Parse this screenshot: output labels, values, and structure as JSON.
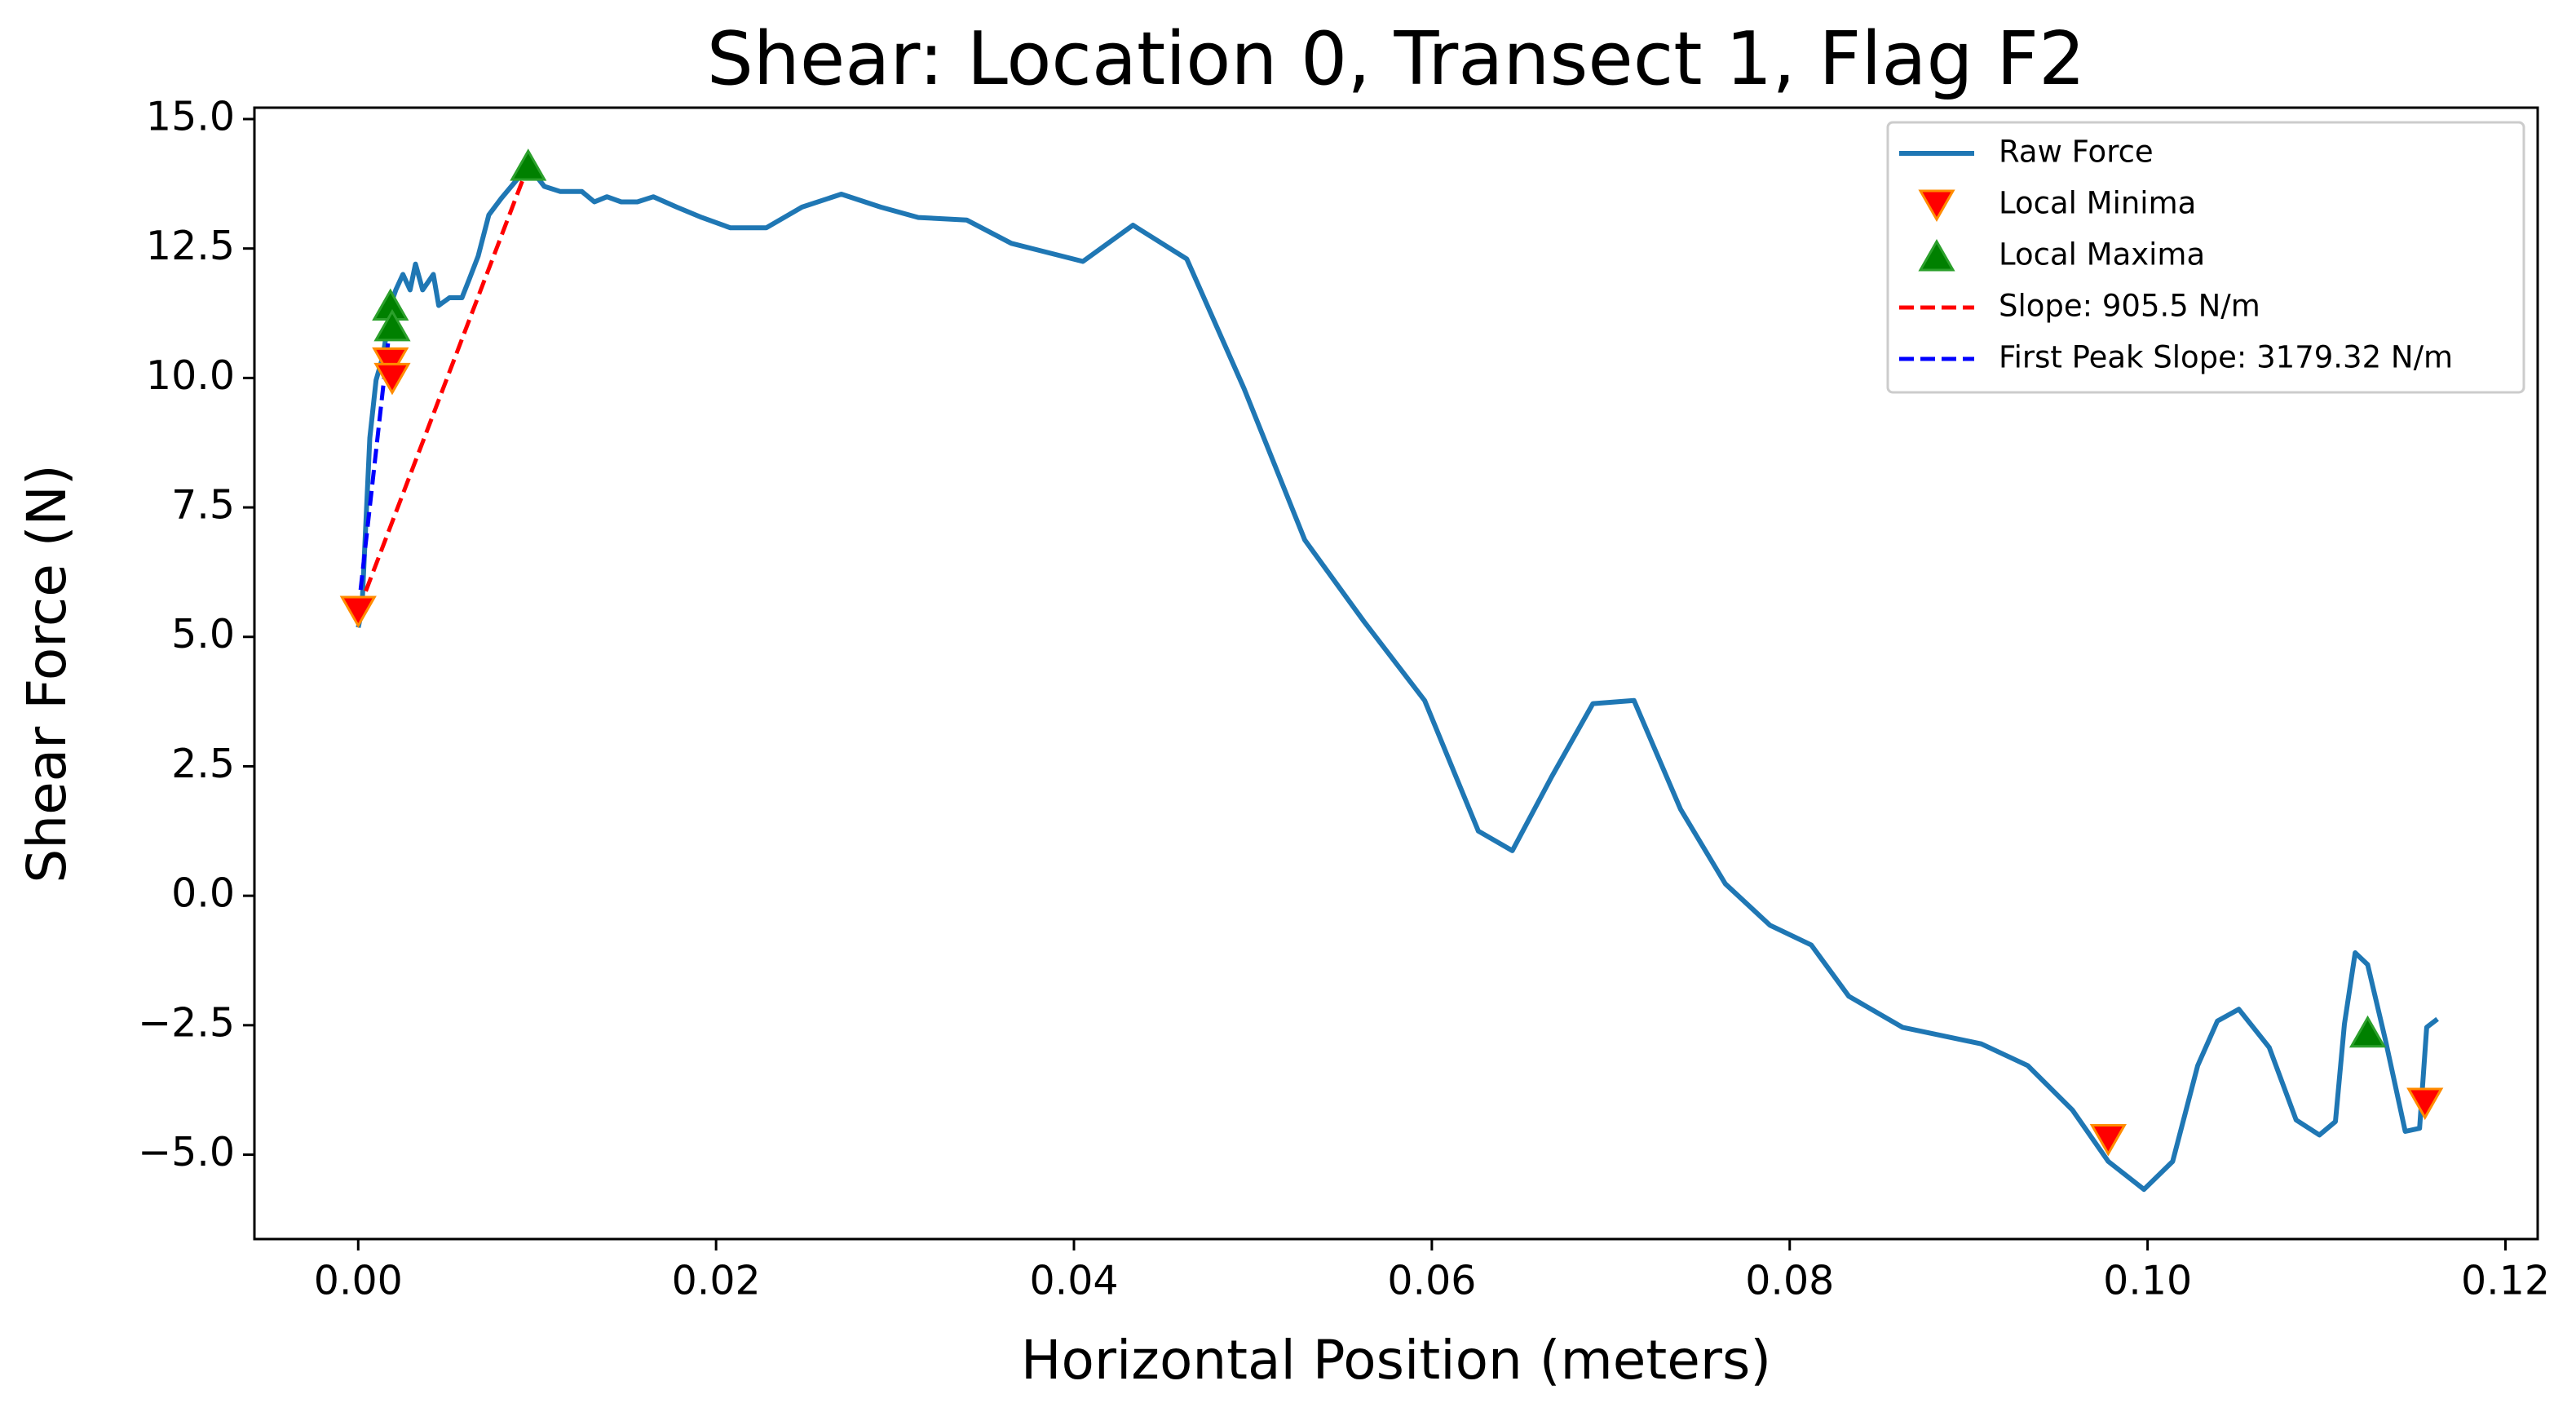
{
  "chart_data": {
    "type": "line",
    "title": "Shear: Location 0, Transect 1, Flag F2",
    "xlabel": "Horizontal Position (meters)",
    "ylabel": "Shear Force (N)",
    "xlim": [
      -0.0058,
      0.1218
    ],
    "ylim": [
      -6.63,
      15.22
    ],
    "xticks": [
      {
        "value": 0,
        "label": "0.00"
      },
      {
        "value": 0.02,
        "label": "0.02"
      },
      {
        "value": 0.04,
        "label": "0.04"
      },
      {
        "value": 0.06,
        "label": "0.06"
      },
      {
        "value": 0.08,
        "label": "0.08"
      },
      {
        "value": 0.1,
        "label": "0.10"
      },
      {
        "value": 0.12,
        "label": "0.12"
      }
    ],
    "yticks": [
      {
        "value": -5,
        "label": "−5.0"
      },
      {
        "value": -2.5,
        "label": "−2.5"
      },
      {
        "value": 0,
        "label": "0.0"
      },
      {
        "value": 2.5,
        "label": "2.5"
      },
      {
        "value": 5,
        "label": "5.0"
      },
      {
        "value": 7.5,
        "label": "7.5"
      },
      {
        "value": 10,
        "label": "10.0"
      },
      {
        "value": 12.5,
        "label": "12.5"
      },
      {
        "value": 15,
        "label": "15.0"
      }
    ],
    "legend": "upper right",
    "series": [
      {
        "name": "Raw Force",
        "color": "#1f77b4",
        "style": "solid",
        "x": [
          0,
          0.0002,
          0.00065,
          0.001,
          0.0014,
          0.0018,
          0.0021,
          0.0025,
          0.0029,
          0.0032,
          0.0036,
          0.0042,
          0.0045,
          0.0051,
          0.0058,
          0.0062,
          0.0067,
          0.0073,
          0.008,
          0.0088,
          0.0095,
          0.0104,
          0.0113,
          0.0125,
          0.0132,
          0.0139,
          0.0147,
          0.0156,
          0.0165,
          0.0178,
          0.0192,
          0.0208,
          0.0228,
          0.0248,
          0.027,
          0.0292,
          0.0313,
          0.034,
          0.0365,
          0.0405,
          0.0433,
          0.0463,
          0.0495,
          0.0529,
          0.0562,
          0.0596,
          0.0626,
          0.0645,
          0.0667,
          0.069,
          0.0713,
          0.0739,
          0.0764,
          0.0789,
          0.0812,
          0.0833,
          0.0863,
          0.0907,
          0.0933,
          0.0958,
          0.0978,
          0.0998,
          0.1014,
          0.1028,
          0.1039,
          0.1051,
          0.1068,
          0.1083,
          0.1096,
          0.1105,
          0.111,
          0.1116,
          0.1123,
          0.1133,
          0.1144,
          0.1152,
          0.1156,
          0.1162
        ],
        "values": [
          5.18,
          5.5,
          8.84,
          9.96,
          10.44,
          11.4,
          11.7,
          12.0,
          11.7,
          12.2,
          11.7,
          12.0,
          11.4,
          11.55,
          11.55,
          11.9,
          12.35,
          13.15,
          13.47,
          13.8,
          14.1,
          13.7,
          13.6,
          13.6,
          13.4,
          13.5,
          13.4,
          13.4,
          13.5,
          13.3,
          13.1,
          12.9,
          12.9,
          13.3,
          13.55,
          13.3,
          13.1,
          13.05,
          12.6,
          12.25,
          12.95,
          12.3,
          9.8,
          6.87,
          5.3,
          3.77,
          1.25,
          0.87,
          2.3,
          3.71,
          3.77,
          1.67,
          0.23,
          -0.57,
          -0.95,
          -1.94,
          -2.54,
          -2.86,
          -3.28,
          -4.14,
          -5.13,
          -5.67,
          -5.13,
          -3.28,
          -2.42,
          -2.19,
          -2.93,
          -4.33,
          -4.62,
          -4.36,
          -2.48,
          -1.1,
          -1.33,
          -2.8,
          -4.55,
          -4.49,
          -2.54,
          -2.38
        ]
      },
      {
        "name": "Local Minima",
        "color": "#ff0000",
        "edgecolor": "#ff8c00",
        "style": "marker",
        "marker": "v",
        "x": [
          0,
          0.0018,
          0.0019,
          0.0978,
          0.1155
        ],
        "values": [
          5.5,
          10.3,
          10.0,
          -4.7,
          -4.0
        ]
      },
      {
        "name": "Local Maxima",
        "color": "#008000",
        "edgecolor": "#2ca02c",
        "style": "marker",
        "marker": "^",
        "x": [
          0.0018,
          0.0019,
          0.0095,
          0.1123
        ],
        "values": [
          11.4,
          11.0,
          14.1,
          -2.64
        ]
      },
      {
        "name": "Slope: 905.5 N/m",
        "color": "#ff0000",
        "style": "dashed",
        "x": [
          0,
          0.0095
        ],
        "values": [
          5.5,
          14.1
        ]
      },
      {
        "name": "First Peak Slope: 3179.32 N/m",
        "color": "#0000ff",
        "style": "dashed",
        "x": [
          0,
          0.0019
        ],
        "values": [
          5.5,
          11.4
        ]
      }
    ]
  }
}
